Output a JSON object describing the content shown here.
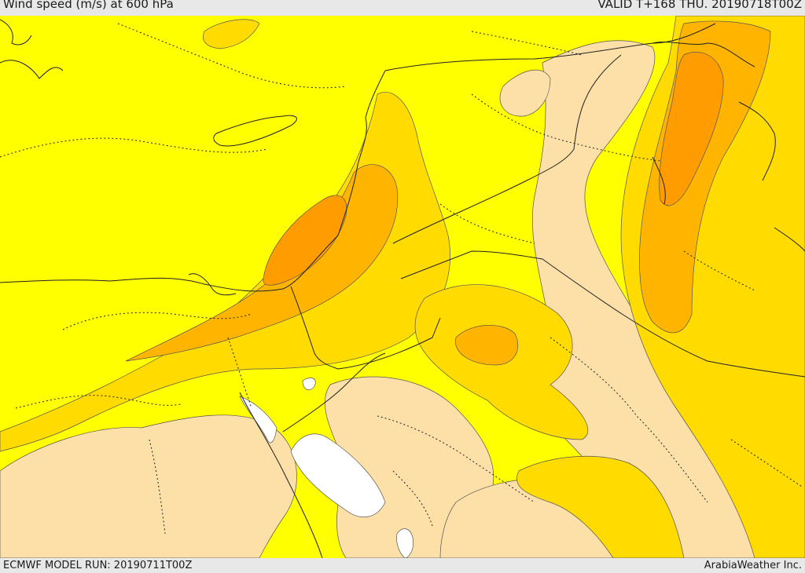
{
  "header": {
    "title": "Wind speed (m/s) at 600 hPa",
    "valid": "VALID T+168 THU. 20190718T00Z"
  },
  "footer": {
    "model_run": "ECMWF MODEL RUN: 20190711T00Z",
    "credit": "ArabiaWeather Inc."
  },
  "colors": {
    "level_5_10": "#ffff00",
    "level_0_5": "#fde0a8",
    "level_10_15": "#ffdb00",
    "level_15_20": "#ffb400",
    "level_20_25": "#ff9c00",
    "water_gap": "#ffffff"
  }
}
